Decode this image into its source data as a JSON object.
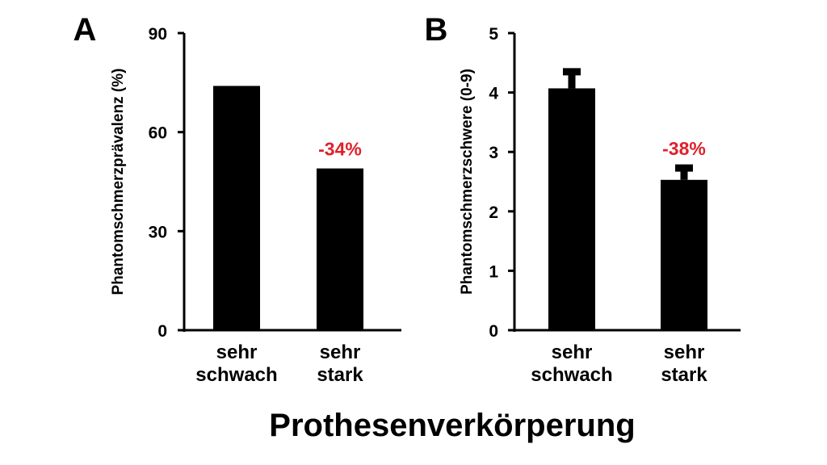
{
  "figure_title": "Prothesenverkörperung",
  "colors": {
    "bars": "#000000",
    "annotation": "#e0202a"
  },
  "chart_data": [
    {
      "type": "bar",
      "panel": "A",
      "title": "",
      "xlabel": "",
      "ylabel": "Phantomschmerzprävalenz (%)",
      "categories": [
        [
          "sehr",
          "schwach"
        ],
        [
          "sehr",
          "stark"
        ]
      ],
      "values": [
        74,
        49
      ],
      "ylim": [
        0,
        90
      ],
      "yticks": [
        0,
        30,
        60,
        90
      ],
      "annotation": {
        "category_index": 1,
        "text": "-34%"
      },
      "grid": false
    },
    {
      "type": "bar",
      "panel": "B",
      "title": "",
      "xlabel": "",
      "ylabel": "Phantomschmerzschwere (0-9)",
      "categories": [
        [
          "sehr",
          "schwach"
        ],
        [
          "sehr",
          "stark"
        ]
      ],
      "values": [
        4.07,
        2.53
      ],
      "error_upper": [
        0.28,
        0.2
      ],
      "ylim": [
        0,
        5
      ],
      "yticks": [
        0,
        1,
        2,
        3,
        4,
        5
      ],
      "annotation": {
        "category_index": 1,
        "text": "-38%"
      },
      "grid": false
    }
  ]
}
